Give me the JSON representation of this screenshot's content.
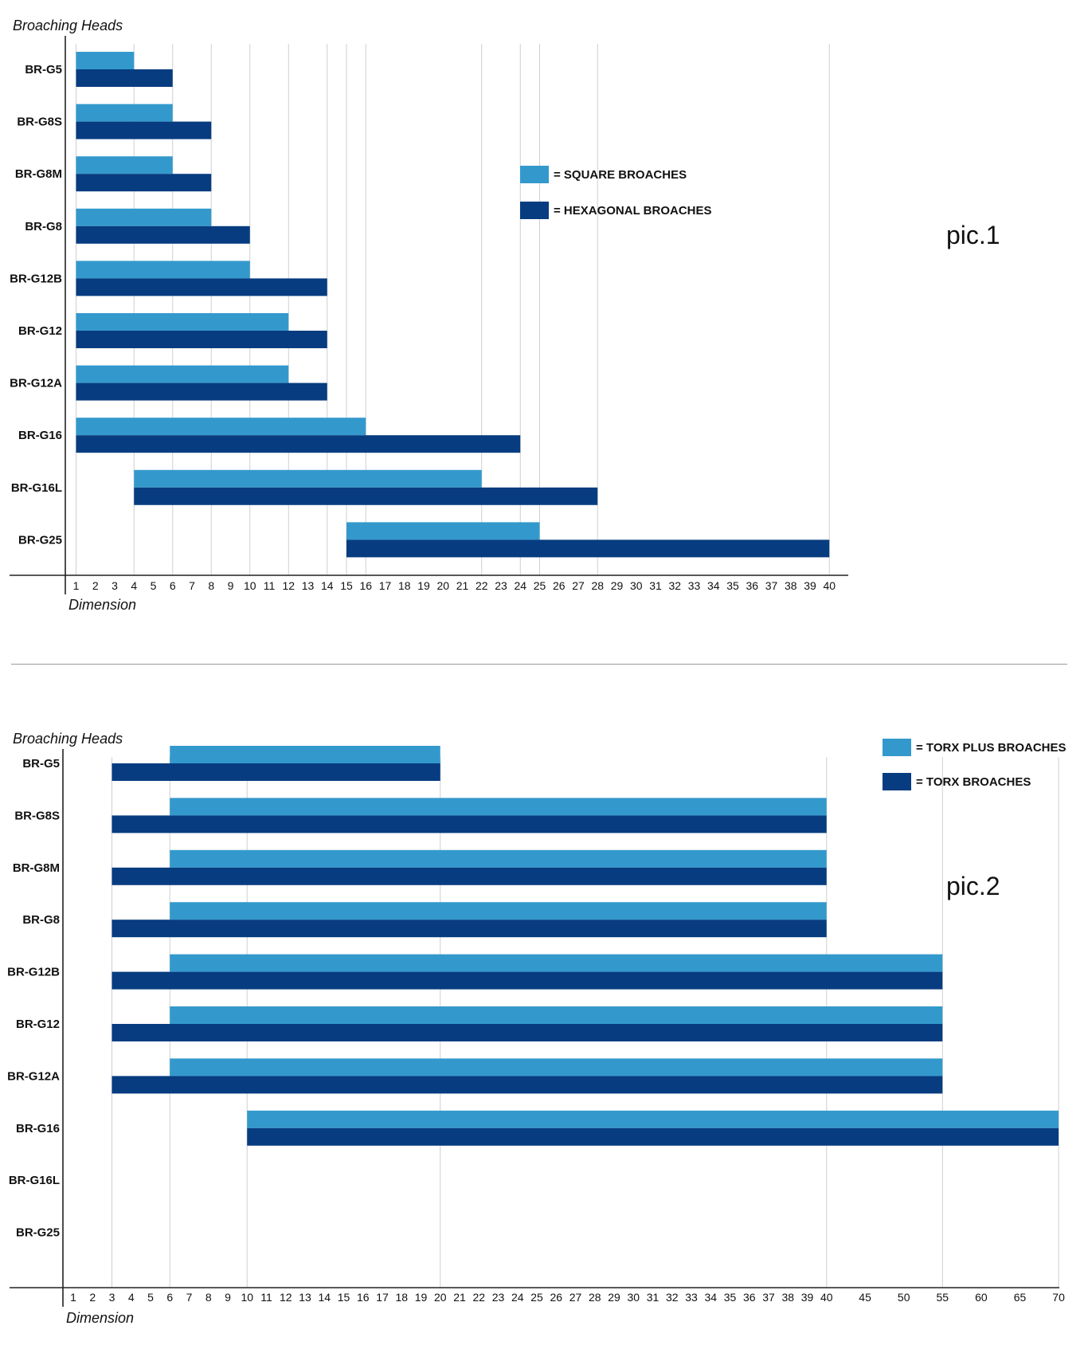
{
  "colors": {
    "light": "#3399cc",
    "dark": "#073c80",
    "grid": "#cfcfcf",
    "axis": "#222222"
  },
  "chart_data": [
    {
      "type": "bar",
      "orientation": "horizontal-range",
      "ylabel": "Broaching Heads",
      "xlabel": "Dimension",
      "annotation": "pic.1",
      "x_ticks": [
        1,
        2,
        3,
        4,
        5,
        6,
        7,
        8,
        9,
        10,
        11,
        12,
        13,
        14,
        15,
        16,
        17,
        18,
        19,
        20,
        21,
        22,
        23,
        24,
        25,
        26,
        27,
        28,
        29,
        30,
        31,
        32,
        33,
        34,
        35,
        36,
        37,
        38,
        39,
        40
      ],
      "categories": [
        "BR-G5",
        "BR-G8S",
        "BR-G8M",
        "BR-G8",
        "BR-G12B",
        "BR-G12",
        "BR-G12A",
        "BR-G16",
        "BR-G16L",
        "BR-G25"
      ],
      "legend_position": "center-right",
      "series": [
        {
          "name": "= SQUARE BROACHES",
          "color": "light",
          "ranges": [
            [
              1,
              4
            ],
            [
              1,
              6
            ],
            [
              1,
              6
            ],
            [
              1,
              8
            ],
            [
              1,
              10
            ],
            [
              1,
              12
            ],
            [
              1,
              12
            ],
            [
              1,
              16
            ],
            [
              4,
              22
            ],
            [
              15,
              25
            ]
          ]
        },
        {
          "name": "= HEXAGONAL BROACHES",
          "color": "dark",
          "ranges": [
            [
              1,
              6
            ],
            [
              1,
              8
            ],
            [
              1,
              8
            ],
            [
              1,
              10
            ],
            [
              1,
              14
            ],
            [
              1,
              14
            ],
            [
              1,
              14
            ],
            [
              1,
              24
            ],
            [
              4,
              28
            ],
            [
              15,
              40
            ]
          ]
        }
      ]
    },
    {
      "type": "bar",
      "orientation": "horizontal-range",
      "ylabel": "Broaching Heads",
      "xlabel": "Dimension",
      "annotation": "pic.2",
      "x_ticks": [
        1,
        2,
        3,
        4,
        5,
        6,
        7,
        8,
        9,
        10,
        11,
        12,
        13,
        14,
        15,
        16,
        17,
        18,
        19,
        20,
        21,
        22,
        23,
        24,
        25,
        26,
        27,
        28,
        29,
        30,
        31,
        32,
        33,
        34,
        35,
        36,
        37,
        38,
        39,
        40,
        45,
        50,
        55,
        60,
        65,
        70
      ],
      "categories": [
        "BR-G5",
        "BR-G8S",
        "BR-G8M",
        "BR-G8",
        "BR-G12B",
        "BR-G12",
        "BR-G12A",
        "BR-G16",
        "BR-G16L",
        "BR-G25"
      ],
      "legend_position": "top-right",
      "series": [
        {
          "name": "= TORX PLUS BROACHES",
          "color": "light",
          "ranges": [
            [
              6,
              20
            ],
            [
              6,
              40
            ],
            [
              6,
              40
            ],
            [
              6,
              40
            ],
            [
              6,
              55
            ],
            [
              6,
              55
            ],
            [
              6,
              55
            ],
            [
              10,
              70
            ],
            null,
            null
          ]
        },
        {
          "name": "= TORX BROACHES",
          "color": "dark",
          "ranges": [
            [
              3,
              20
            ],
            [
              3,
              40
            ],
            [
              3,
              40
            ],
            [
              3,
              40
            ],
            [
              3,
              55
            ],
            [
              3,
              55
            ],
            [
              3,
              55
            ],
            [
              10,
              70
            ],
            null,
            null
          ]
        }
      ]
    }
  ]
}
